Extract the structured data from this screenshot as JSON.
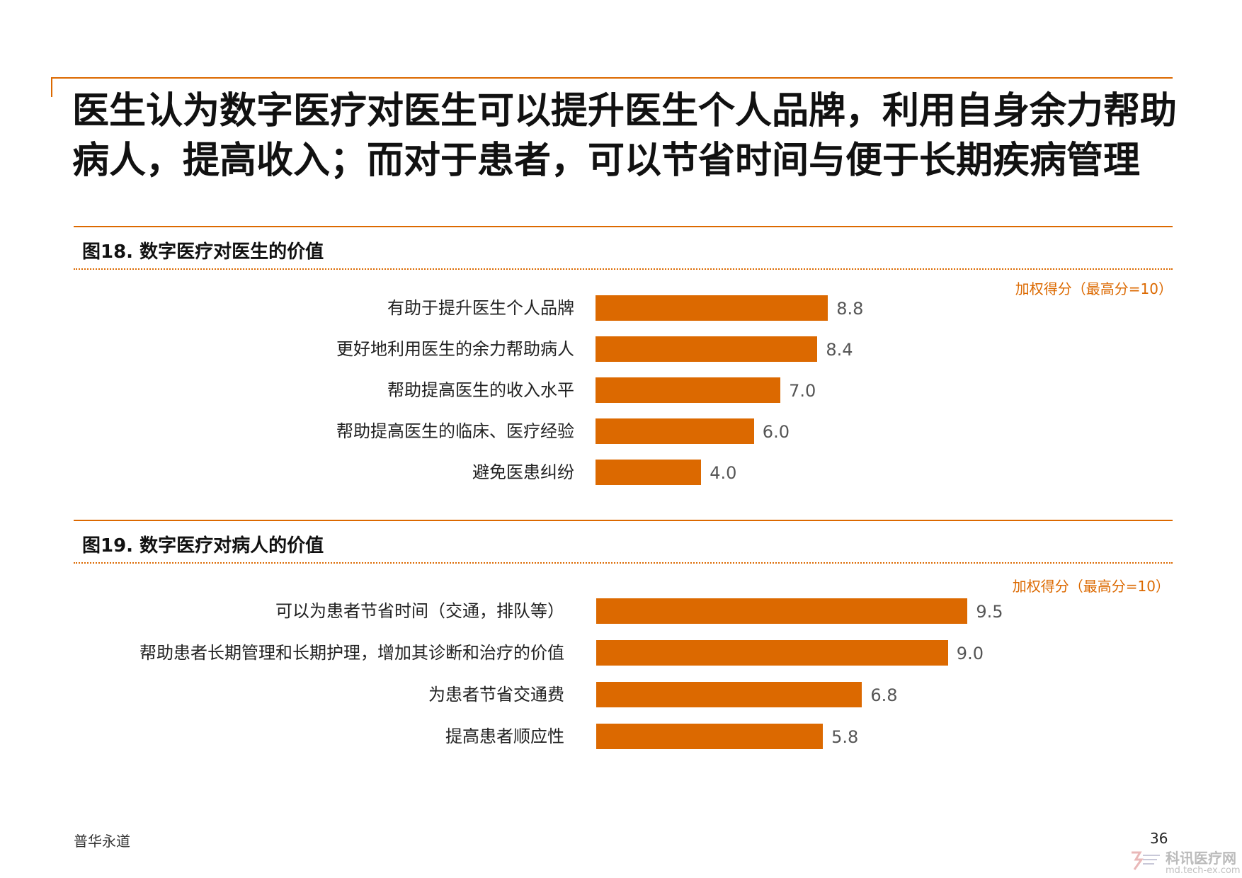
{
  "title": "医生认为数字医疗对医生可以提升医生个人品牌，利用自身余力帮助病人，提高收入；而对于患者，可以节省时间与便于长期疾病管理",
  "accent_color": "#dc6900",
  "footer": {
    "left": "普华永道",
    "page": "36"
  },
  "watermark": {
    "text": "科讯医疗网",
    "sub": "md.tech-ex.com",
    "icon": "logo-icon"
  },
  "chart_data": [
    {
      "type": "bar",
      "orientation": "horizontal",
      "title": "图18. 数字医疗对医生的价值",
      "unit_label": "加权得分（最高分=10）",
      "categories": [
        "有助于提升医生个人品牌",
        "更好地利用医生的余力帮助病人",
        "帮助提高医生的收入水平",
        "帮助提高医生的临床、医疗经验",
        "避免医患纠纷"
      ],
      "values": [
        8.8,
        8.4,
        7.0,
        6.0,
        4.0
      ],
      "value_labels": [
        "8.8",
        "8.4",
        "7.0",
        "6.0",
        "4.0"
      ],
      "xlim": [
        0,
        10
      ],
      "color": "#dc6900"
    },
    {
      "type": "bar",
      "orientation": "horizontal",
      "title": "图19. 数字医疗对病人的价值",
      "unit_label": "加权得分（最高分=10）",
      "categories": [
        "可以为患者节省时间（交通，排队等）",
        "帮助患者长期管理和长期护理，增加其诊断和治疗的价值",
        "为患者节省交通费",
        "提高患者顺应性"
      ],
      "values": [
        9.5,
        9.0,
        6.8,
        5.8
      ],
      "value_labels": [
        "9.5",
        "9.0",
        "6.8",
        "5.8"
      ],
      "xlim": [
        0,
        10
      ],
      "color": "#dc6900"
    }
  ]
}
